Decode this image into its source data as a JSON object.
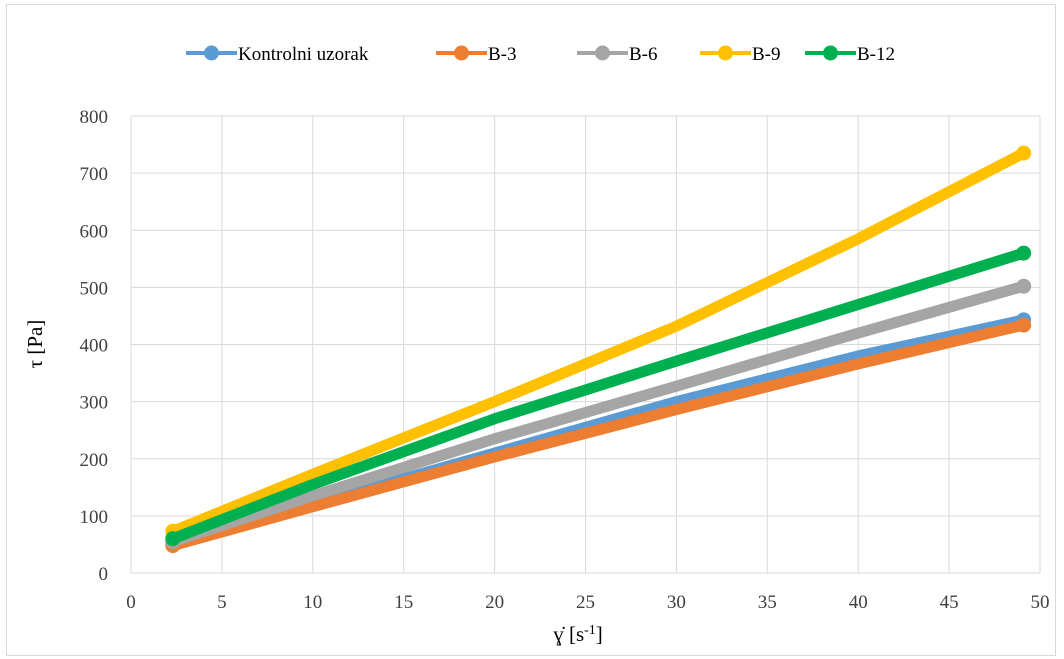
{
  "chart_data": {
    "type": "line",
    "xlabel": "γ̇ [s⁻¹]",
    "xlabel_main": "ɣ̇ [s",
    "xlabel_sup": "-1",
    "xlabel_end": "]",
    "ylabel": "τ [Pa]",
    "xlim": [
      0,
      50
    ],
    "ylim": [
      0,
      800
    ],
    "xticks": [
      0,
      5,
      10,
      15,
      20,
      25,
      30,
      35,
      40,
      45,
      50
    ],
    "yticks": [
      0,
      100,
      200,
      300,
      400,
      500,
      600,
      700,
      800
    ],
    "grid": true,
    "legend_position": "top",
    "series": [
      {
        "name": "Kontrolni uzorak",
        "color": "#5B9BD5",
        "points": [
          [
            2.3,
            52
          ],
          [
            10,
            120
          ],
          [
            20,
            210
          ],
          [
            30,
            300
          ],
          [
            40,
            380
          ],
          [
            49.1,
            443
          ]
        ]
      },
      {
        "name": "B-3",
        "color": "#ED7D31",
        "points": [
          [
            2.3,
            48
          ],
          [
            10,
            116
          ],
          [
            20,
            203
          ],
          [
            30,
            286
          ],
          [
            40,
            366
          ],
          [
            49.1,
            434
          ]
        ]
      },
      {
        "name": "B-6",
        "color": "#A5A5A5",
        "points": [
          [
            2.3,
            55
          ],
          [
            10,
            135
          ],
          [
            20,
            235
          ],
          [
            30,
            327
          ],
          [
            40,
            420
          ],
          [
            49.1,
            502
          ]
        ]
      },
      {
        "name": "B-9",
        "color": "#FFC000",
        "points": [
          [
            2.3,
            73
          ],
          [
            10,
            173
          ],
          [
            20,
            300
          ],
          [
            30,
            432
          ],
          [
            40,
            585
          ],
          [
            49.1,
            735
          ]
        ]
      },
      {
        "name": "B-12",
        "color": "#00B050",
        "points": [
          [
            2.3,
            60
          ],
          [
            10,
            155
          ],
          [
            20,
            270
          ],
          [
            30,
            371
          ],
          [
            40,
            470
          ],
          [
            49.1,
            560
          ]
        ]
      }
    ]
  }
}
